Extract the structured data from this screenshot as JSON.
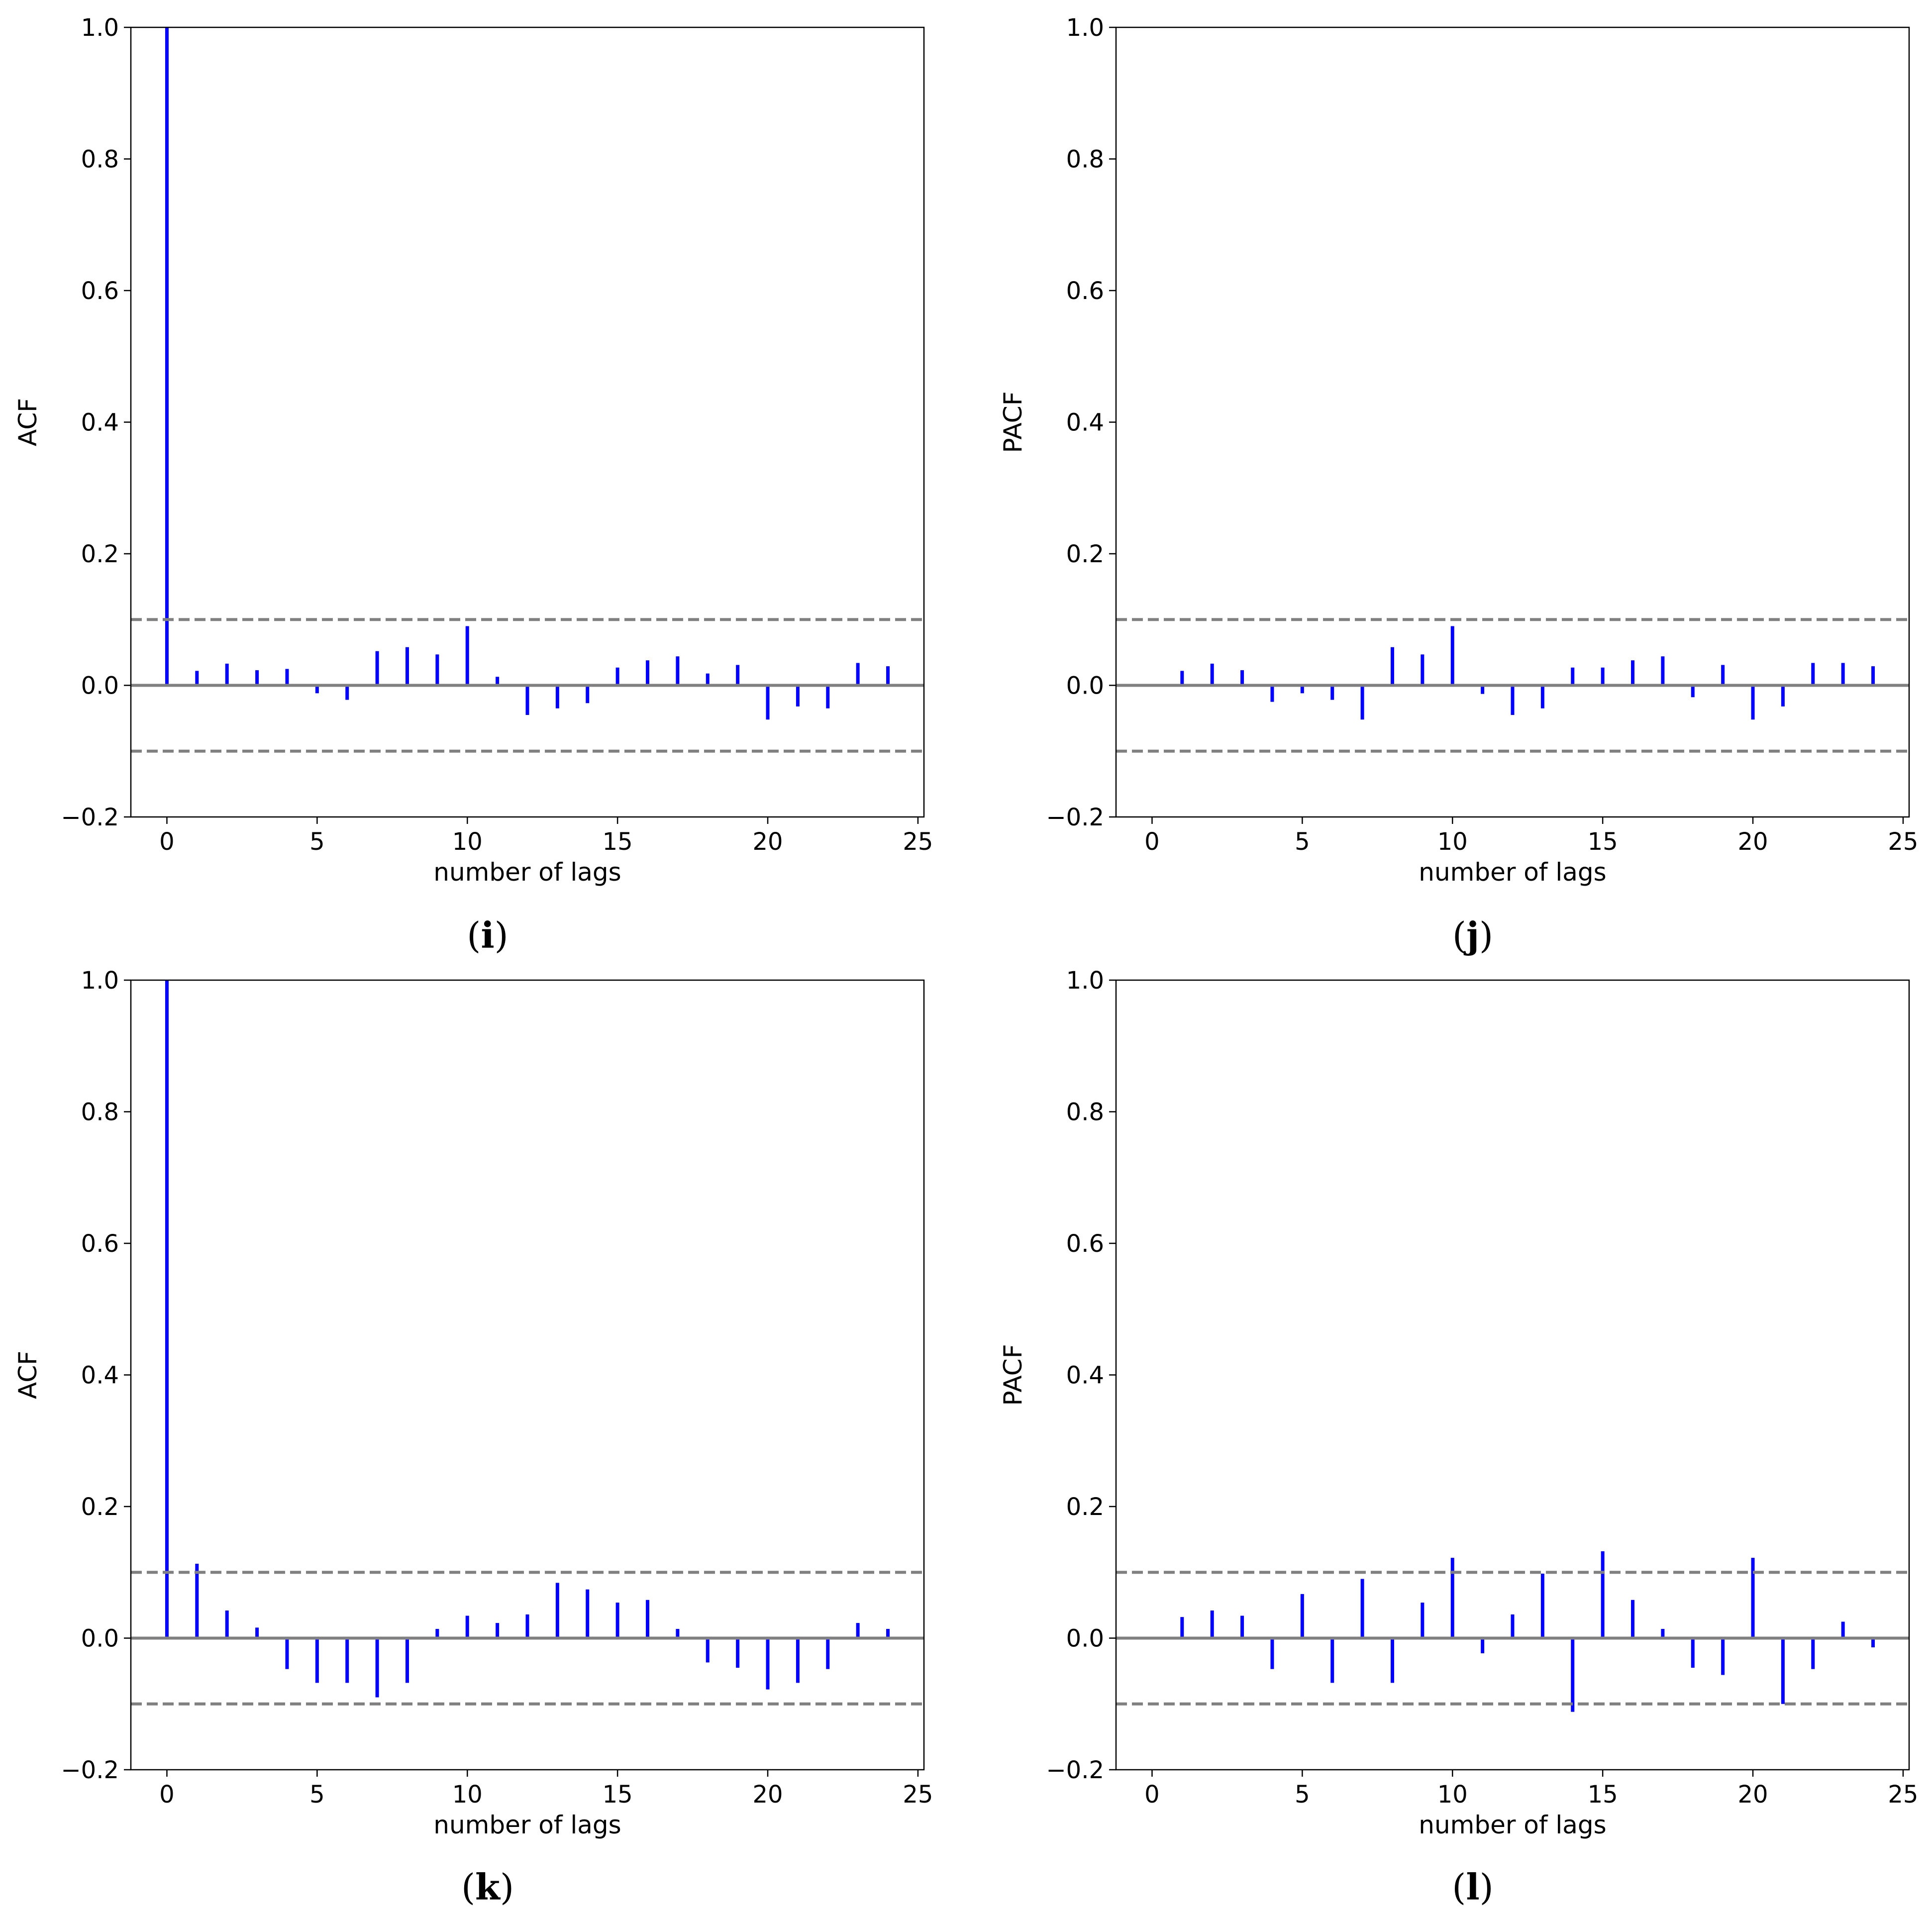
{
  "chart_data": [
    {
      "type": "bar",
      "panel_label": "i",
      "ylabel": "ACF",
      "xlabel": "number of lags",
      "xlim": [
        -1.2,
        25.2
      ],
      "ylim": [
        -0.2,
        1.0
      ],
      "xticks": [
        0,
        5,
        10,
        15,
        20,
        25
      ],
      "yticks": [
        -0.2,
        0.0,
        0.2,
        0.4,
        0.6,
        0.8,
        1.0
      ],
      "confidence_bound": 0.1,
      "x": [
        0,
        1,
        2,
        3,
        4,
        5,
        6,
        7,
        8,
        9,
        10,
        11,
        12,
        13,
        14,
        15,
        16,
        17,
        18,
        19,
        20,
        21,
        22,
        23,
        24
      ],
      "values": [
        1.0,
        0.022,
        0.033,
        0.023,
        0.025,
        -0.012,
        -0.022,
        0.052,
        0.058,
        0.047,
        0.09,
        0.013,
        -0.045,
        -0.035,
        -0.027,
        0.027,
        0.038,
        0.044,
        0.018,
        0.031,
        -0.052,
        -0.032,
        -0.035,
        0.034,
        0.029
      ]
    },
    {
      "type": "bar",
      "panel_label": "j",
      "ylabel": "PACF",
      "xlabel": "number of lags",
      "xlim": [
        -1.2,
        25.2
      ],
      "ylim": [
        -0.2,
        1.0
      ],
      "xticks": [
        0,
        5,
        10,
        15,
        20,
        25
      ],
      "yticks": [
        -0.2,
        0.0,
        0.2,
        0.4,
        0.6,
        0.8,
        1.0
      ],
      "confidence_bound": 0.1,
      "x": [
        1,
        2,
        3,
        4,
        5,
        6,
        7,
        8,
        9,
        10,
        11,
        12,
        13,
        14,
        15,
        16,
        17,
        18,
        19,
        20,
        21,
        22,
        23,
        24
      ],
      "values": [
        0.022,
        0.033,
        0.023,
        -0.025,
        -0.012,
        -0.022,
        -0.052,
        0.058,
        0.047,
        0.09,
        -0.013,
        -0.045,
        -0.035,
        0.027,
        0.027,
        0.038,
        0.044,
        -0.018,
        0.031,
        -0.052,
        -0.032,
        0.034,
        0.034,
        0.029
      ]
    },
    {
      "type": "bar",
      "panel_label": "k",
      "ylabel": "ACF",
      "xlabel": "number of lags",
      "xlim": [
        -1.2,
        25.2
      ],
      "ylim": [
        -0.2,
        1.0
      ],
      "xticks": [
        0,
        5,
        10,
        15,
        20,
        25
      ],
      "yticks": [
        -0.2,
        0.0,
        0.2,
        0.4,
        0.6,
        0.8,
        1.0
      ],
      "confidence_bound": 0.1,
      "x": [
        0,
        1,
        2,
        3,
        4,
        5,
        6,
        7,
        8,
        9,
        10,
        11,
        12,
        13,
        14,
        15,
        16,
        17,
        18,
        19,
        20,
        21,
        22,
        23,
        24
      ],
      "values": [
        1.0,
        0.113,
        0.042,
        0.016,
        -0.047,
        -0.068,
        -0.068,
        -0.09,
        -0.068,
        0.014,
        0.034,
        0.023,
        0.036,
        0.084,
        0.074,
        0.054,
        0.058,
        0.014,
        -0.037,
        -0.045,
        -0.078,
        -0.068,
        -0.047,
        0.023,
        0.014
      ]
    },
    {
      "type": "bar",
      "panel_label": "l",
      "ylabel": "PACF",
      "xlabel": "number of lags",
      "xlim": [
        -1.2,
        25.2
      ],
      "ylim": [
        -0.2,
        1.0
      ],
      "xticks": [
        0,
        5,
        10,
        15,
        20,
        25
      ],
      "yticks": [
        -0.2,
        0.0,
        0.2,
        0.4,
        0.6,
        0.8,
        1.0
      ],
      "confidence_bound": 0.1,
      "x": [
        1,
        2,
        3,
        4,
        5,
        6,
        7,
        8,
        9,
        10,
        11,
        12,
        13,
        14,
        15,
        16,
        17,
        18,
        19,
        20,
        21,
        22,
        23,
        24
      ],
      "values": [
        0.032,
        0.042,
        0.034,
        -0.047,
        0.067,
        -0.068,
        0.09,
        -0.068,
        0.054,
        0.122,
        -0.023,
        0.036,
        0.098,
        -0.112,
        0.132,
        0.058,
        0.014,
        -0.045,
        -0.056,
        0.122,
        -0.1,
        -0.047,
        0.025,
        -0.014
      ]
    }
  ]
}
